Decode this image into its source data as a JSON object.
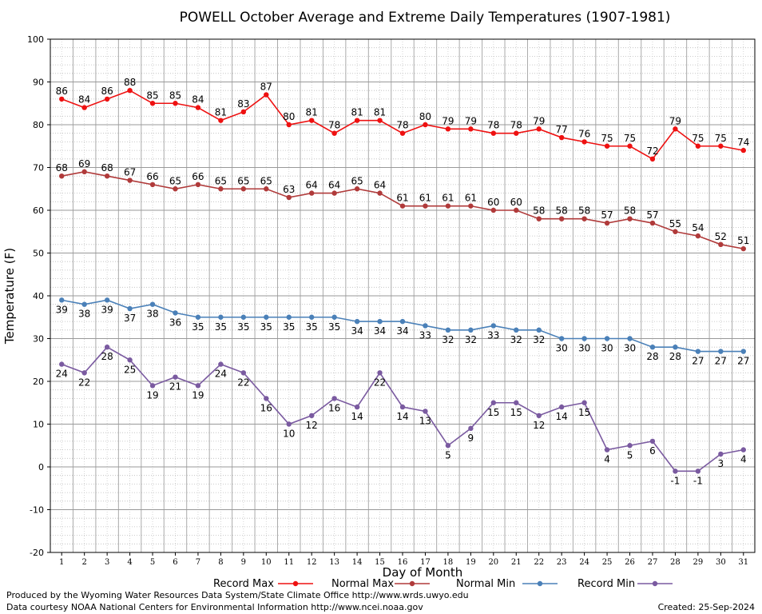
{
  "chart_data": {
    "type": "line",
    "title": "POWELL October Average and Extreme Daily Temperatures (1907-1981)",
    "xlabel": "Day of Month",
    "ylabel": "Temperature (F)",
    "ylim": [
      -20,
      100
    ],
    "yticks": [
      -20,
      -10,
      0,
      10,
      20,
      30,
      40,
      50,
      60,
      70,
      80,
      90,
      100
    ],
    "xlim": [
      0.5,
      31.5
    ],
    "grid": true,
    "legend_placement": "bottom",
    "x": [
      1,
      2,
      3,
      4,
      5,
      6,
      7,
      8,
      9,
      10,
      11,
      12,
      13,
      14,
      15,
      16,
      17,
      18,
      19,
      20,
      21,
      22,
      23,
      24,
      25,
      26,
      27,
      28,
      29,
      30,
      31
    ],
    "series": [
      {
        "name": "Record Max",
        "color": "#ee1111",
        "label_position": "above",
        "values": [
          86,
          84,
          86,
          88,
          85,
          85,
          84,
          81,
          83,
          87,
          80,
          81,
          78,
          81,
          81,
          78,
          80,
          79,
          79,
          78,
          78,
          79,
          77,
          76,
          75,
          75,
          72,
          79,
          75,
          75,
          74
        ]
      },
      {
        "name": "Normal Max",
        "color": "#b03a3a",
        "label_position": "above",
        "values": [
          68,
          69,
          68,
          67,
          66,
          65,
          66,
          65,
          65,
          65,
          63,
          64,
          64,
          65,
          64,
          61,
          61,
          61,
          61,
          60,
          60,
          58,
          58,
          58,
          57,
          58,
          57,
          55,
          54,
          52,
          51
        ]
      },
      {
        "name": "Normal Min",
        "color": "#4a80b8",
        "label_position": "below",
        "values": [
          39,
          38,
          39,
          37,
          38,
          36,
          35,
          35,
          35,
          35,
          35,
          35,
          35,
          34,
          34,
          34,
          33,
          32,
          32,
          33,
          32,
          32,
          30,
          30,
          30,
          30,
          28,
          28,
          27,
          27,
          27
        ]
      },
      {
        "name": "Record Min",
        "color": "#7a5aa0",
        "label_position": "below",
        "values": [
          24,
          22,
          28,
          25,
          19,
          21,
          19,
          24,
          22,
          16,
          10,
          12,
          16,
          14,
          22,
          14,
          13,
          5,
          9,
          15,
          15,
          12,
          14,
          15,
          4,
          5,
          6,
          -1,
          -1,
          3,
          4
        ]
      }
    ]
  },
  "footer": {
    "produced_by": "Produced by the Wyoming Water Resources Data System/State Climate Office http://www.wrds.uwyo.edu",
    "data_courtesy": "Data courtesy NOAA National Centers for Environmental Information http://www.ncei.noaa.gov",
    "created": "Created: 25-Sep-2024"
  }
}
